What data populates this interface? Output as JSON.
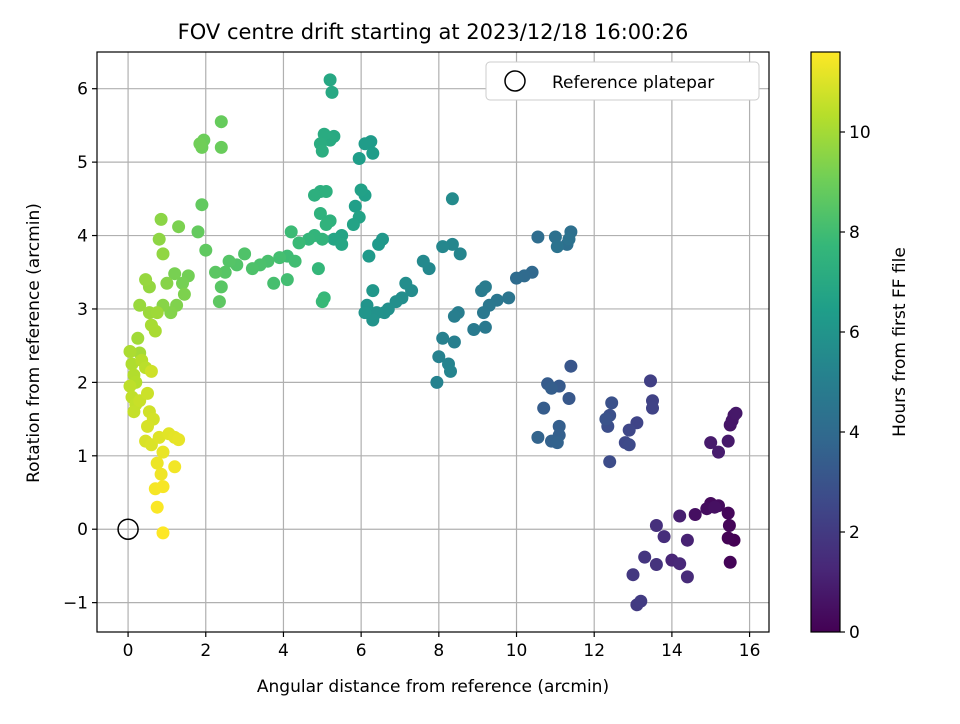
{
  "chart_data": {
    "type": "scatter",
    "title": "FOV centre drift starting at 2023/12/18 16:00:26",
    "xlabel": "Angular distance from reference (arcmin)",
    "ylabel": "Rotation from reference (arcmin)",
    "xlim": [
      -0.8,
      16.5
    ],
    "ylim": [
      -1.4,
      6.5
    ],
    "x_ticks": [
      0,
      2,
      4,
      6,
      8,
      10,
      12,
      14,
      16
    ],
    "y_ticks": [
      -1,
      0,
      1,
      2,
      3,
      4,
      5,
      6
    ],
    "x_tick_labels": [
      "0",
      "2",
      "4",
      "6",
      "8",
      "10",
      "12",
      "14",
      "16"
    ],
    "y_tick_labels": [
      "−1",
      "0",
      "1",
      "2",
      "3",
      "4",
      "5",
      "6"
    ],
    "grid": true,
    "legend": {
      "position": "top-right",
      "entries": [
        "Reference platepar"
      ]
    },
    "reference_point": {
      "x": 0,
      "y": 0,
      "label": "Reference platepar"
    },
    "colorbar": {
      "label": "Hours from first FF file",
      "range": [
        0,
        11.6
      ],
      "ticks": [
        0,
        2,
        4,
        6,
        8,
        10
      ],
      "tick_labels": [
        "0",
        "2",
        "4",
        "6",
        "8",
        "10"
      ],
      "colormap": "viridis",
      "colors": [
        "#440154",
        "#482878",
        "#3e4989",
        "#31688e",
        "#26828e",
        "#1f9e89",
        "#35b779",
        "#6ece58",
        "#b5de2b",
        "#fde725"
      ]
    },
    "points": [
      [
        15.6,
        -0.15,
        0.0
      ],
      [
        15.45,
        -0.12,
        0.05
      ],
      [
        15.5,
        -0.45,
        0.1
      ],
      [
        15.48,
        0.05,
        0.15
      ],
      [
        15.45,
        0.22,
        0.2
      ],
      [
        15.0,
        0.35,
        0.3
      ],
      [
        15.2,
        0.32,
        0.35
      ],
      [
        14.9,
        0.28,
        0.4
      ],
      [
        14.6,
        0.2,
        0.45
      ],
      [
        15.1,
        0.3,
        0.5
      ],
      [
        15.6,
        1.55,
        0.6
      ],
      [
        15.5,
        1.42,
        0.65
      ],
      [
        15.55,
        1.48,
        0.7
      ],
      [
        15.65,
        1.58,
        0.75
      ],
      [
        15.45,
        1.2,
        0.8
      ],
      [
        15.0,
        1.18,
        0.85
      ],
      [
        15.2,
        1.05,
        0.9
      ],
      [
        14.2,
        0.18,
        1.0
      ],
      [
        14.4,
        -0.15,
        1.1
      ],
      [
        14.0,
        -0.42,
        1.2
      ],
      [
        14.2,
        -0.47,
        1.3
      ],
      [
        14.4,
        -0.65,
        1.4
      ],
      [
        13.8,
        -0.1,
        1.5
      ],
      [
        13.6,
        0.05,
        1.6
      ],
      [
        13.6,
        -0.48,
        1.7
      ],
      [
        13.3,
        -0.38,
        1.8
      ],
      [
        13.0,
        -0.62,
        1.9
      ],
      [
        13.1,
        -1.03,
        2.0
      ],
      [
        13.2,
        -0.98,
        2.05
      ],
      [
        13.45,
        2.02,
        2.2
      ],
      [
        13.5,
        1.75,
        2.3
      ],
      [
        13.5,
        1.65,
        2.35
      ],
      [
        13.1,
        1.45,
        2.4
      ],
      [
        12.9,
        1.35,
        2.5
      ],
      [
        12.8,
        1.18,
        2.55
      ],
      [
        12.9,
        1.15,
        2.6
      ],
      [
        12.4,
        0.92,
        2.7
      ],
      [
        12.35,
        1.4,
        2.8
      ],
      [
        12.4,
        1.55,
        2.85
      ],
      [
        12.45,
        1.72,
        2.9
      ],
      [
        12.3,
        1.5,
        3.0
      ],
      [
        11.4,
        2.22,
        3.1
      ],
      [
        11.35,
        1.78,
        3.2
      ],
      [
        11.1,
        1.95,
        3.3
      ],
      [
        10.8,
        1.98,
        3.35
      ],
      [
        10.7,
        1.65,
        3.4
      ],
      [
        10.9,
        1.92,
        3.45
      ],
      [
        11.1,
        1.4,
        3.5
      ],
      [
        11.1,
        1.28,
        3.55
      ],
      [
        10.9,
        1.2,
        3.6
      ],
      [
        11.05,
        1.18,
        3.65
      ],
      [
        10.55,
        1.25,
        3.7
      ],
      [
        10.4,
        3.5,
        3.9
      ],
      [
        10.2,
        3.45,
        4.0
      ],
      [
        10.0,
        3.42,
        4.05
      ],
      [
        10.55,
        3.98,
        4.1
      ],
      [
        11.3,
        3.88,
        4.2
      ],
      [
        11.4,
        4.05,
        4.25
      ],
      [
        11.0,
        3.98,
        4.3
      ],
      [
        11.35,
        3.95,
        4.35
      ],
      [
        11.05,
        3.85,
        4.4
      ],
      [
        9.8,
        3.15,
        4.5
      ],
      [
        9.5,
        3.12,
        4.55
      ],
      [
        9.3,
        3.05,
        4.6
      ],
      [
        9.15,
        2.95,
        4.65
      ],
      [
        9.2,
        2.75,
        4.7
      ],
      [
        8.9,
        2.72,
        4.75
      ],
      [
        9.1,
        3.25,
        4.8
      ],
      [
        9.2,
        3.3,
        4.85
      ],
      [
        8.5,
        2.95,
        4.9
      ],
      [
        8.4,
        2.9,
        4.95
      ],
      [
        8.4,
        2.55,
        5.0
      ],
      [
        8.1,
        2.6,
        5.05
      ],
      [
        8.0,
        2.35,
        5.1
      ],
      [
        7.95,
        2.0,
        5.15
      ],
      [
        8.25,
        2.25,
        5.2
      ],
      [
        8.3,
        2.15,
        5.25
      ],
      [
        8.55,
        3.75,
        5.3
      ],
      [
        8.35,
        3.88,
        5.35
      ],
      [
        8.1,
        3.85,
        5.4
      ],
      [
        7.75,
        3.55,
        5.45
      ],
      [
        7.6,
        3.65,
        5.5
      ],
      [
        8.35,
        4.5,
        5.55
      ],
      [
        7.3,
        3.25,
        5.6
      ],
      [
        7.15,
        3.35,
        5.65
      ],
      [
        7.05,
        3.15,
        5.7
      ],
      [
        6.9,
        3.1,
        5.75
      ],
      [
        6.7,
        3.0,
        5.8
      ],
      [
        6.6,
        2.95,
        5.85
      ],
      [
        6.4,
        2.95,
        5.9
      ],
      [
        6.3,
        2.85,
        5.95
      ],
      [
        6.15,
        3.05,
        6.0
      ],
      [
        6.1,
        2.95,
        6.05
      ],
      [
        6.3,
        3.25,
        6.1
      ],
      [
        6.55,
        3.95,
        6.15
      ],
      [
        6.45,
        3.88,
        6.2
      ],
      [
        6.2,
        3.72,
        6.25
      ],
      [
        6.25,
        5.28,
        6.3
      ],
      [
        6.1,
        5.25,
        6.35
      ],
      [
        6.3,
        5.12,
        6.4
      ],
      [
        5.95,
        5.05,
        6.45
      ],
      [
        5.85,
        4.4,
        6.5
      ],
      [
        6.1,
        4.55,
        6.55
      ],
      [
        6.0,
        4.62,
        6.6
      ],
      [
        5.95,
        4.25,
        6.65
      ],
      [
        5.8,
        4.15,
        6.7
      ],
      [
        5.5,
        4.0,
        6.75
      ],
      [
        5.3,
        3.95,
        6.8
      ],
      [
        5.5,
        3.88,
        6.85
      ],
      [
        5.2,
        6.12,
        6.9
      ],
      [
        5.25,
        5.95,
        6.95
      ],
      [
        5.3,
        5.35,
        7.0
      ],
      [
        5.2,
        5.3,
        7.05
      ],
      [
        5.05,
        5.38,
        7.1
      ],
      [
        4.95,
        5.25,
        7.15
      ],
      [
        5.0,
        5.15,
        7.2
      ],
      [
        4.95,
        4.6,
        7.25
      ],
      [
        4.8,
        4.55,
        7.3
      ],
      [
        5.1,
        4.6,
        7.35
      ],
      [
        5.2,
        4.2,
        7.4
      ],
      [
        4.95,
        4.3,
        7.45
      ],
      [
        5.1,
        4.15,
        7.5
      ],
      [
        5.0,
        3.95,
        7.55
      ],
      [
        4.8,
        4.0,
        7.6
      ],
      [
        4.65,
        3.95,
        7.65
      ],
      [
        4.9,
        3.55,
        7.7
      ],
      [
        5.05,
        3.15,
        7.75
      ],
      [
        5.0,
        3.1,
        7.8
      ],
      [
        4.4,
        3.9,
        7.85
      ],
      [
        4.2,
        4.05,
        7.9
      ],
      [
        4.1,
        3.72,
        7.95
      ],
      [
        4.3,
        3.65,
        8.0
      ],
      [
        4.1,
        3.4,
        8.05
      ],
      [
        3.9,
        3.7,
        8.1
      ],
      [
        3.75,
        3.35,
        8.15
      ],
      [
        3.6,
        3.65,
        8.2
      ],
      [
        3.4,
        3.6,
        8.25
      ],
      [
        3.2,
        3.55,
        8.3
      ],
      [
        3.0,
        3.75,
        8.35
      ],
      [
        2.8,
        3.6,
        8.4
      ],
      [
        2.6,
        3.65,
        8.45
      ],
      [
        2.5,
        3.5,
        8.5
      ],
      [
        2.4,
        3.3,
        8.55
      ],
      [
        2.25,
        3.5,
        8.6
      ],
      [
        2.35,
        3.1,
        8.65
      ],
      [
        2.0,
        3.8,
        8.7
      ],
      [
        1.9,
        4.42,
        8.75
      ],
      [
        1.8,
        4.05,
        8.8
      ],
      [
        2.4,
        5.55,
        8.85
      ],
      [
        2.4,
        5.2,
        8.9
      ],
      [
        1.95,
        5.3,
        8.95
      ],
      [
        1.9,
        5.2,
        9.0
      ],
      [
        1.85,
        5.25,
        9.05
      ],
      [
        1.55,
        3.45,
        9.1
      ],
      [
        1.4,
        3.35,
        9.15
      ],
      [
        1.2,
        3.48,
        9.2
      ],
      [
        1.3,
        4.12,
        9.25
      ],
      [
        1.45,
        3.2,
        9.3
      ],
      [
        1.25,
        3.05,
        9.35
      ],
      [
        1.1,
        2.95,
        9.4
      ],
      [
        1.0,
        3.35,
        9.45
      ],
      [
        0.9,
        3.05,
        9.5
      ],
      [
        0.85,
        4.22,
        9.55
      ],
      [
        0.8,
        3.95,
        9.6
      ],
      [
        0.9,
        3.75,
        9.65
      ],
      [
        0.55,
        3.3,
        9.7
      ],
      [
        0.45,
        3.4,
        9.75
      ],
      [
        0.3,
        3.05,
        9.8
      ],
      [
        0.55,
        2.95,
        9.85
      ],
      [
        0.75,
        2.95,
        9.9
      ],
      [
        0.25,
        2.6,
        9.95
      ],
      [
        0.3,
        2.4,
        10.0
      ],
      [
        0.6,
        2.78,
        10.05
      ],
      [
        0.7,
        2.7,
        10.1
      ],
      [
        0.05,
        2.42,
        10.15
      ],
      [
        0.1,
        2.25,
        10.2
      ],
      [
        0.15,
        2.1,
        10.25
      ],
      [
        0.2,
        2.0,
        10.3
      ],
      [
        0.35,
        2.3,
        10.35
      ],
      [
        0.45,
        2.2,
        10.4
      ],
      [
        0.05,
        1.95,
        10.45
      ],
      [
        0.1,
        1.8,
        10.5
      ],
      [
        0.2,
        1.7,
        10.55
      ],
      [
        0.15,
        1.6,
        10.6
      ],
      [
        0.3,
        1.75,
        10.65
      ],
      [
        0.5,
        1.85,
        10.7
      ],
      [
        0.6,
        2.15,
        10.75
      ],
      [
        0.55,
        1.6,
        10.8
      ],
      [
        0.65,
        1.5,
        10.85
      ],
      [
        0.5,
        1.4,
        10.9
      ],
      [
        0.45,
        1.2,
        10.95
      ],
      [
        0.6,
        1.15,
        11.0
      ],
      [
        0.8,
        1.25,
        11.05
      ],
      [
        1.05,
        1.3,
        11.1
      ],
      [
        1.2,
        1.25,
        11.15
      ],
      [
        1.3,
        1.22,
        11.2
      ],
      [
        0.9,
        1.05,
        11.25
      ],
      [
        0.75,
        0.9,
        11.3
      ],
      [
        0.85,
        0.75,
        11.35
      ],
      [
        1.2,
        0.85,
        11.4
      ],
      [
        0.7,
        0.55,
        11.45
      ],
      [
        0.9,
        0.58,
        11.5
      ],
      [
        0.75,
        0.3,
        11.55
      ],
      [
        0.9,
        -0.05,
        11.6
      ]
    ]
  }
}
